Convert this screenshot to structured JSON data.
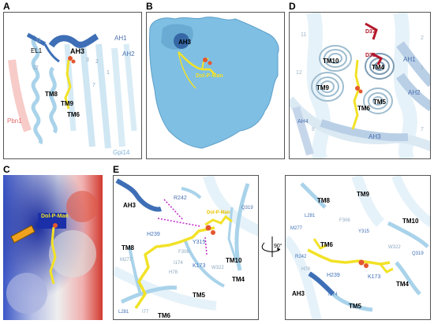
{
  "panels": {
    "A": {
      "letter": "A",
      "labels": {
        "el1": "EL1",
        "ah3": "AH3",
        "ah1": "AH1",
        "ah2": "AH2",
        "n12": "12",
        "n3": "3",
        "n11": "11",
        "n2": "2",
        "n1": "1",
        "n7": "7",
        "pbn1": "Pbn1",
        "tm8": "TM8",
        "tm9": "TM9",
        "tm6": "TM6",
        "gpi14": "Gpi14"
      }
    },
    "B": {
      "letter": "B",
      "labels": {
        "ah3": "AH3",
        "dolpman": "Dol-P-Man"
      }
    },
    "C": {
      "letter": "C",
      "labels": {
        "dolpman": "Dol-P-Man"
      }
    },
    "D": {
      "letter": "D",
      "labels": {
        "d37": "D37",
        "d39": "D39",
        "n11": "11",
        "n2": "2",
        "n12": "12",
        "n1": "1",
        "tm10": "TM10",
        "tm4": "TM4",
        "ah1": "AH1",
        "tm9": "TM9",
        "ah2": "AH2",
        "tm6": "TM6",
        "tm5": "TM5",
        "ah4": "AH4",
        "n8": "8",
        "ah3": "AH3",
        "n7": "7"
      }
    },
    "E": {
      "letter": "E",
      "left": {
        "r242": "R242",
        "ah3": "AH3",
        "dolpman": "Dol-P-Man",
        "q319": "Q319",
        "h239": "H239",
        "y315": "Y315",
        "tm8": "TM8",
        "m277": "M277",
        "f306": "F306",
        "i174": "I174",
        "k173": "K173",
        "w322": "W322",
        "tm10": "TM10",
        "h78": "H78",
        "tm4": "TM4",
        "tm5": "TM5",
        "l281": "L281",
        "i77": "I77",
        "tm6": "TM6"
      },
      "rotation": "90°",
      "right": {
        "tm8": "TM8",
        "tm9": "TM9",
        "m277": "M277",
        "l281": "L281",
        "f306": "F306",
        "tm10": "TM10",
        "y315": "Y315",
        "tm6": "TM6",
        "r242": "R242",
        "w322": "W322",
        "q319": "Q319",
        "h78": "H78",
        "h239": "H239",
        "k173": "K173",
        "tm4": "TM4",
        "ah3": "AH3",
        "i174": "I174",
        "tm5": "TM5"
      }
    }
  },
  "colors": {
    "helix_blue": "#3e6fb6",
    "helix_light": "#a9d3ea",
    "surface_blue": "#7fbfe3",
    "ligand_yellow": "#f2e227",
    "phosphate_orange": "#e4572e",
    "d_residue_red": "#b3172a",
    "hbond_magenta": "#c026c9"
  }
}
